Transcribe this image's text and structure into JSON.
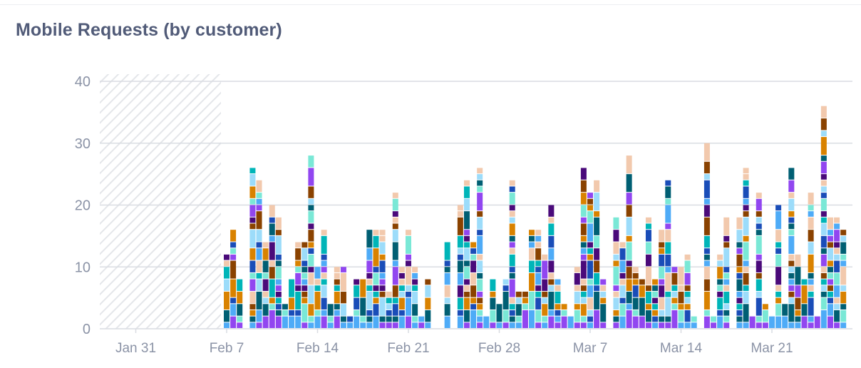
{
  "panel": {
    "title": "Mobile Requests (by customer)"
  },
  "chart_data": {
    "type": "bar",
    "stacked": true,
    "title": "Mobile Requests (by customer)",
    "xlabel": "",
    "ylabel": "",
    "ylim": [
      0,
      40
    ],
    "yticks": [
      0,
      10,
      20,
      30,
      40
    ],
    "xticks": [
      "Jan 31",
      "Feb 7",
      "Feb 14",
      "Feb 21",
      "Feb 28",
      "Mar 7",
      "Mar 14",
      "Mar 21"
    ],
    "grid": true,
    "no_data_range": [
      "Jan 28",
      "Feb 7"
    ],
    "bucket": "12h",
    "first_bucket": "Feb 7",
    "values": [
      12,
      16,
      8,
      0,
      26,
      24,
      14,
      20,
      18,
      4,
      8,
      14,
      14,
      28,
      10,
      16,
      4,
      10,
      10,
      2,
      8,
      8,
      16,
      16,
      16,
      6,
      22,
      10,
      16,
      10,
      2,
      8,
      0,
      0,
      14,
      0,
      20,
      24,
      14,
      26,
      2,
      8,
      4,
      8,
      24,
      6,
      6,
      16,
      16,
      12,
      20,
      8,
      4,
      2,
      10,
      26,
      22,
      24,
      8,
      0,
      18,
      14,
      28,
      10,
      8,
      18,
      8,
      16,
      24,
      10,
      10,
      12,
      2,
      0,
      30,
      2,
      12,
      18,
      0,
      18,
      26,
      2,
      22,
      4,
      2,
      20,
      4,
      26,
      12,
      8,
      22,
      2,
      36,
      18,
      18,
      16
    ],
    "series_colors": [
      "#9146f0",
      "#4eabf7",
      "#7ae8d6",
      "#005f73",
      "#1a4db8",
      "#d98200",
      "#9cdcfa",
      "#00b5b8",
      "#8a4200",
      "#f2c9ad",
      "#4a0a7a"
    ],
    "colors": {
      "grid": "#d9dce2",
      "hatch": "#e4e6ea",
      "axis_text": "#8b93a6"
    }
  }
}
